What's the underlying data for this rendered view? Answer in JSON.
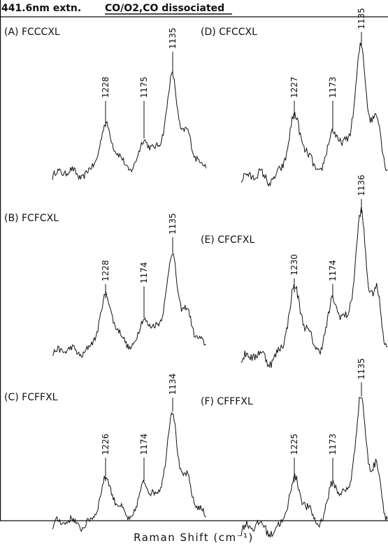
{
  "header": {
    "excitation": "441.6nm extn.",
    "condition": "CO/O2,CO dissociated"
  },
  "xlabel": "Raman Shift (cm⁻¹)",
  "chart_data": [
    {
      "type": "line",
      "title": "(A) FCCCXL",
      "peaks": [
        {
          "label": "1228",
          "pos": 1228,
          "height": 0.45
        },
        {
          "label": "1175",
          "pos": 1175,
          "height": 0.34
        },
        {
          "label": "1135",
          "pos": 1135,
          "height": 0.95
        }
      ]
    },
    {
      "type": "line",
      "title": "(B) FCFCXL",
      "peaks": [
        {
          "label": "1228",
          "pos": 1228,
          "height": 0.52
        },
        {
          "label": "1174",
          "pos": 1174,
          "height": 0.33
        },
        {
          "label": "1135",
          "pos": 1135,
          "height": 0.95
        }
      ]
    },
    {
      "type": "line",
      "title": "(C) FCFFXL",
      "peaks": [
        {
          "label": "1226",
          "pos": 1226,
          "height": 0.38
        },
        {
          "label": "1174",
          "pos": 1174,
          "height": 0.38
        },
        {
          "label": "1134",
          "pos": 1134,
          "height": 1.0
        }
      ]
    },
    {
      "type": "line",
      "title": "(D) CFCCXL",
      "peaks": [
        {
          "label": "1227",
          "pos": 1227,
          "height": 0.45
        },
        {
          "label": "1173",
          "pos": 1173,
          "height": 0.37
        },
        {
          "label": "1135",
          "pos": 1135,
          "height": 1.0
        }
      ]
    },
    {
      "type": "line",
      "title": "(E) CFCFXL",
      "peaks": [
        {
          "label": "1230",
          "pos": 1230,
          "height": 0.46
        },
        {
          "label": "1174",
          "pos": 1174,
          "height": 0.42
        },
        {
          "label": "1136",
          "pos": 1136,
          "height": 1.0
        }
      ]
    },
    {
      "type": "line",
      "title": "(F) CFFFXL",
      "peaks": [
        {
          "label": "1225",
          "pos": 1225,
          "height": 0.34
        },
        {
          "label": "1173",
          "pos": 1173,
          "height": 0.35
        },
        {
          "label": "1135",
          "pos": 1135,
          "height": 0.97
        }
      ]
    }
  ]
}
